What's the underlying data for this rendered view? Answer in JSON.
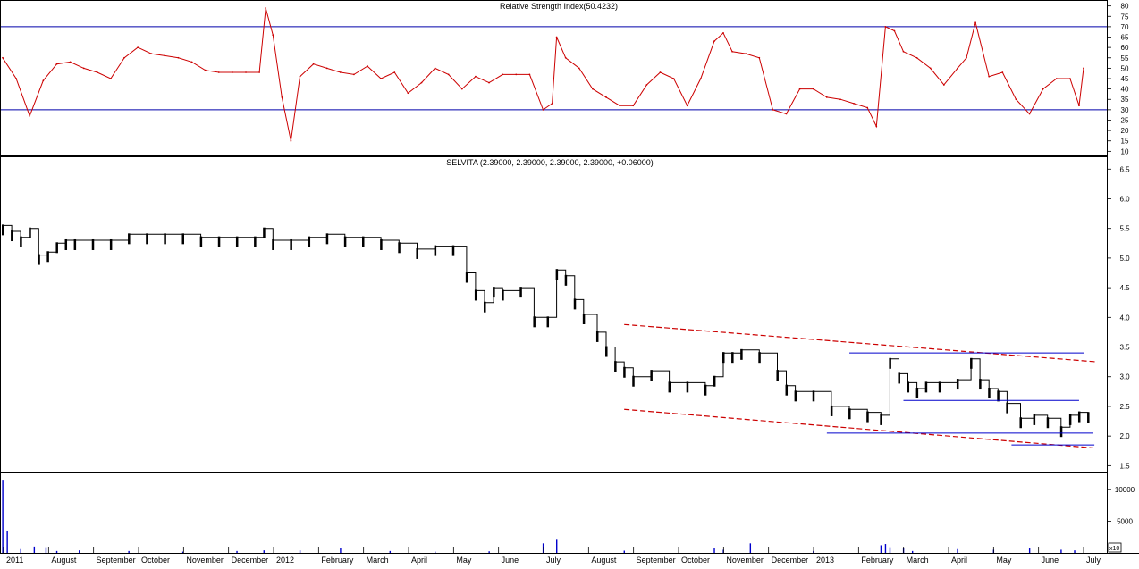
{
  "colors": {
    "background": "#ffffff",
    "frame": "#000000",
    "rsi_line": "#cc0000",
    "rsi_levels": "#0000aa",
    "price_bars": "#000000",
    "trend_channel": "#cc0000",
    "support_lines": "#0000cc",
    "volume_bars": "#0000cc"
  },
  "rsi_panel": {
    "title": "Relative Strength Index(50.4232)"
  },
  "price_panel": {
    "title": "SELVITA (2.39000, 2.39000, 2.39000, 2.39000, +0.06000)"
  },
  "volume_panel": {
    "corner_label": "x10"
  },
  "time_axis": {
    "labels": [
      "2011",
      "August",
      "September",
      "October",
      "November",
      "December",
      "2012",
      "February",
      "March",
      "April",
      "May",
      "June",
      "July",
      "August",
      "September",
      "October",
      "November",
      "December",
      "2013",
      "February",
      "March",
      "April",
      "May",
      "June",
      "July"
    ]
  },
  "chart_data": [
    {
      "type": "line",
      "name": "rsi",
      "title": "Relative Strength Index(50.4232)",
      "ylim": [
        8,
        82
      ],
      "yticks": [
        10,
        15,
        20,
        25,
        30,
        35,
        40,
        45,
        50,
        55,
        60,
        65,
        70,
        75,
        80
      ],
      "levels": [
        30,
        70
      ],
      "x_range": [
        0,
        1200
      ],
      "x": [
        0,
        15,
        30,
        45,
        60,
        75,
        90,
        105,
        120,
        135,
        150,
        165,
        180,
        195,
        210,
        225,
        240,
        255,
        270,
        285,
        292,
        300,
        310,
        320,
        330,
        345,
        360,
        375,
        390,
        405,
        420,
        435,
        450,
        465,
        480,
        495,
        510,
        525,
        540,
        555,
        570,
        585,
        600,
        610,
        615,
        625,
        640,
        655,
        670,
        685,
        700,
        715,
        730,
        745,
        760,
        775,
        790,
        800,
        810,
        825,
        840,
        855,
        870,
        885,
        900,
        915,
        930,
        945,
        960,
        970,
        980,
        990,
        1000,
        1015,
        1030,
        1045,
        1060,
        1070,
        1080,
        1095,
        1110,
        1125,
        1140,
        1155,
        1170,
        1185,
        1195,
        1200
      ],
      "values": [
        55,
        45,
        27,
        44,
        52,
        53,
        50,
        48,
        45,
        55,
        60,
        57,
        56,
        55,
        53,
        49,
        48,
        48,
        48,
        48,
        79,
        66,
        36,
        15,
        46,
        52,
        50,
        48,
        47,
        51,
        45,
        48,
        38,
        43,
        50,
        47,
        40,
        46,
        43,
        47,
        47,
        47,
        30,
        33,
        65,
        55,
        50,
        40,
        36,
        32,
        32,
        42,
        48,
        45,
        32,
        45,
        63,
        67,
        58,
        57,
        55,
        30,
        28,
        40,
        40,
        36,
        35,
        33,
        31,
        22,
        70,
        68,
        58,
        55,
        50,
        42,
        50,
        55,
        72,
        46,
        48,
        35,
        28,
        40,
        45,
        45,
        32,
        50
      ]
    },
    {
      "type": "ohlc",
      "name": "price",
      "title": "SELVITA (2.39000, 2.39000, 2.39000, 2.39000, +0.06000)",
      "ylim": [
        1.4,
        6.7
      ],
      "yticks": [
        1.5,
        2.0,
        2.5,
        3.0,
        3.5,
        4.0,
        4.5,
        5.0,
        5.5,
        6.0,
        6.5
      ],
      "x_range": [
        0,
        1200
      ],
      "x": [
        0,
        10,
        20,
        30,
        40,
        50,
        60,
        70,
        80,
        100,
        120,
        140,
        160,
        180,
        200,
        220,
        240,
        260,
        280,
        290,
        300,
        320,
        340,
        360,
        380,
        400,
        420,
        440,
        460,
        480,
        500,
        515,
        525,
        535,
        545,
        555,
        575,
        590,
        605,
        615,
        625,
        635,
        645,
        660,
        670,
        680,
        690,
        700,
        720,
        740,
        760,
        780,
        790,
        800,
        810,
        820,
        840,
        860,
        870,
        880,
        900,
        920,
        940,
        960,
        975,
        985,
        995,
        1005,
        1015,
        1025,
        1040,
        1060,
        1075,
        1085,
        1095,
        1105,
        1115,
        1130,
        1145,
        1160,
        1175,
        1185,
        1195,
        1205
      ],
      "values": [
        5.55,
        5.45,
        5.35,
        5.5,
        5.05,
        5.1,
        5.25,
        5.3,
        5.3,
        5.3,
        5.3,
        5.4,
        5.4,
        5.4,
        5.4,
        5.35,
        5.35,
        5.35,
        5.35,
        5.5,
        5.3,
        5.3,
        5.35,
        5.4,
        5.35,
        5.35,
        5.3,
        5.25,
        5.15,
        5.2,
        5.2,
        4.75,
        4.45,
        4.25,
        4.5,
        4.45,
        4.5,
        4.0,
        4.0,
        4.8,
        4.7,
        4.3,
        4.05,
        3.75,
        3.5,
        3.25,
        3.15,
        3.0,
        3.1,
        2.9,
        2.9,
        2.85,
        3.0,
        3.4,
        3.4,
        3.45,
        3.4,
        3.1,
        2.85,
        2.75,
        2.75,
        2.5,
        2.45,
        2.4,
        2.35,
        3.3,
        3.05,
        2.9,
        2.8,
        2.9,
        2.9,
        2.95,
        3.3,
        2.95,
        2.8,
        2.75,
        2.55,
        2.3,
        2.35,
        2.3,
        2.15,
        2.35,
        2.4,
        2.39
      ]
    },
    {
      "type": "bar",
      "name": "volume",
      "ylim": [
        0,
        12500
      ],
      "yticks": [
        5000,
        10000
      ],
      "x_range": [
        0,
        1200
      ],
      "x": [
        0,
        5,
        20,
        35,
        48,
        60,
        85,
        140,
        200,
        260,
        290,
        330,
        375,
        430,
        480,
        540,
        600,
        615,
        690,
        790,
        800,
        830,
        900,
        975,
        980,
        985,
        1000,
        1010,
        1060,
        1100,
        1140,
        1175,
        1190
      ],
      "values": [
        11500,
        3500,
        600,
        1000,
        900,
        300,
        400,
        300,
        200,
        300,
        400,
        400,
        800,
        300,
        200,
        250,
        1500,
        2200,
        350,
        700,
        500,
        1500,
        300,
        1200,
        1400,
        900,
        800,
        300,
        600,
        500,
        700,
        500,
        400
      ]
    }
  ],
  "annotations": {
    "channel_upper": {
      "x": [
        690,
        1215
      ],
      "y": [
        3.88,
        3.25
      ]
    },
    "channel_lower": {
      "x": [
        690,
        1210
      ],
      "y": [
        2.45,
        1.8
      ]
    },
    "supports": [
      {
        "x": [
          940,
          1200
        ],
        "y": 3.4
      },
      {
        "x": [
          1000,
          1195
        ],
        "y": 2.6
      },
      {
        "x": [
          915,
          1210
        ],
        "y": 2.05
      },
      {
        "x": [
          1120,
          1212
        ],
        "y": 1.85
      }
    ]
  }
}
